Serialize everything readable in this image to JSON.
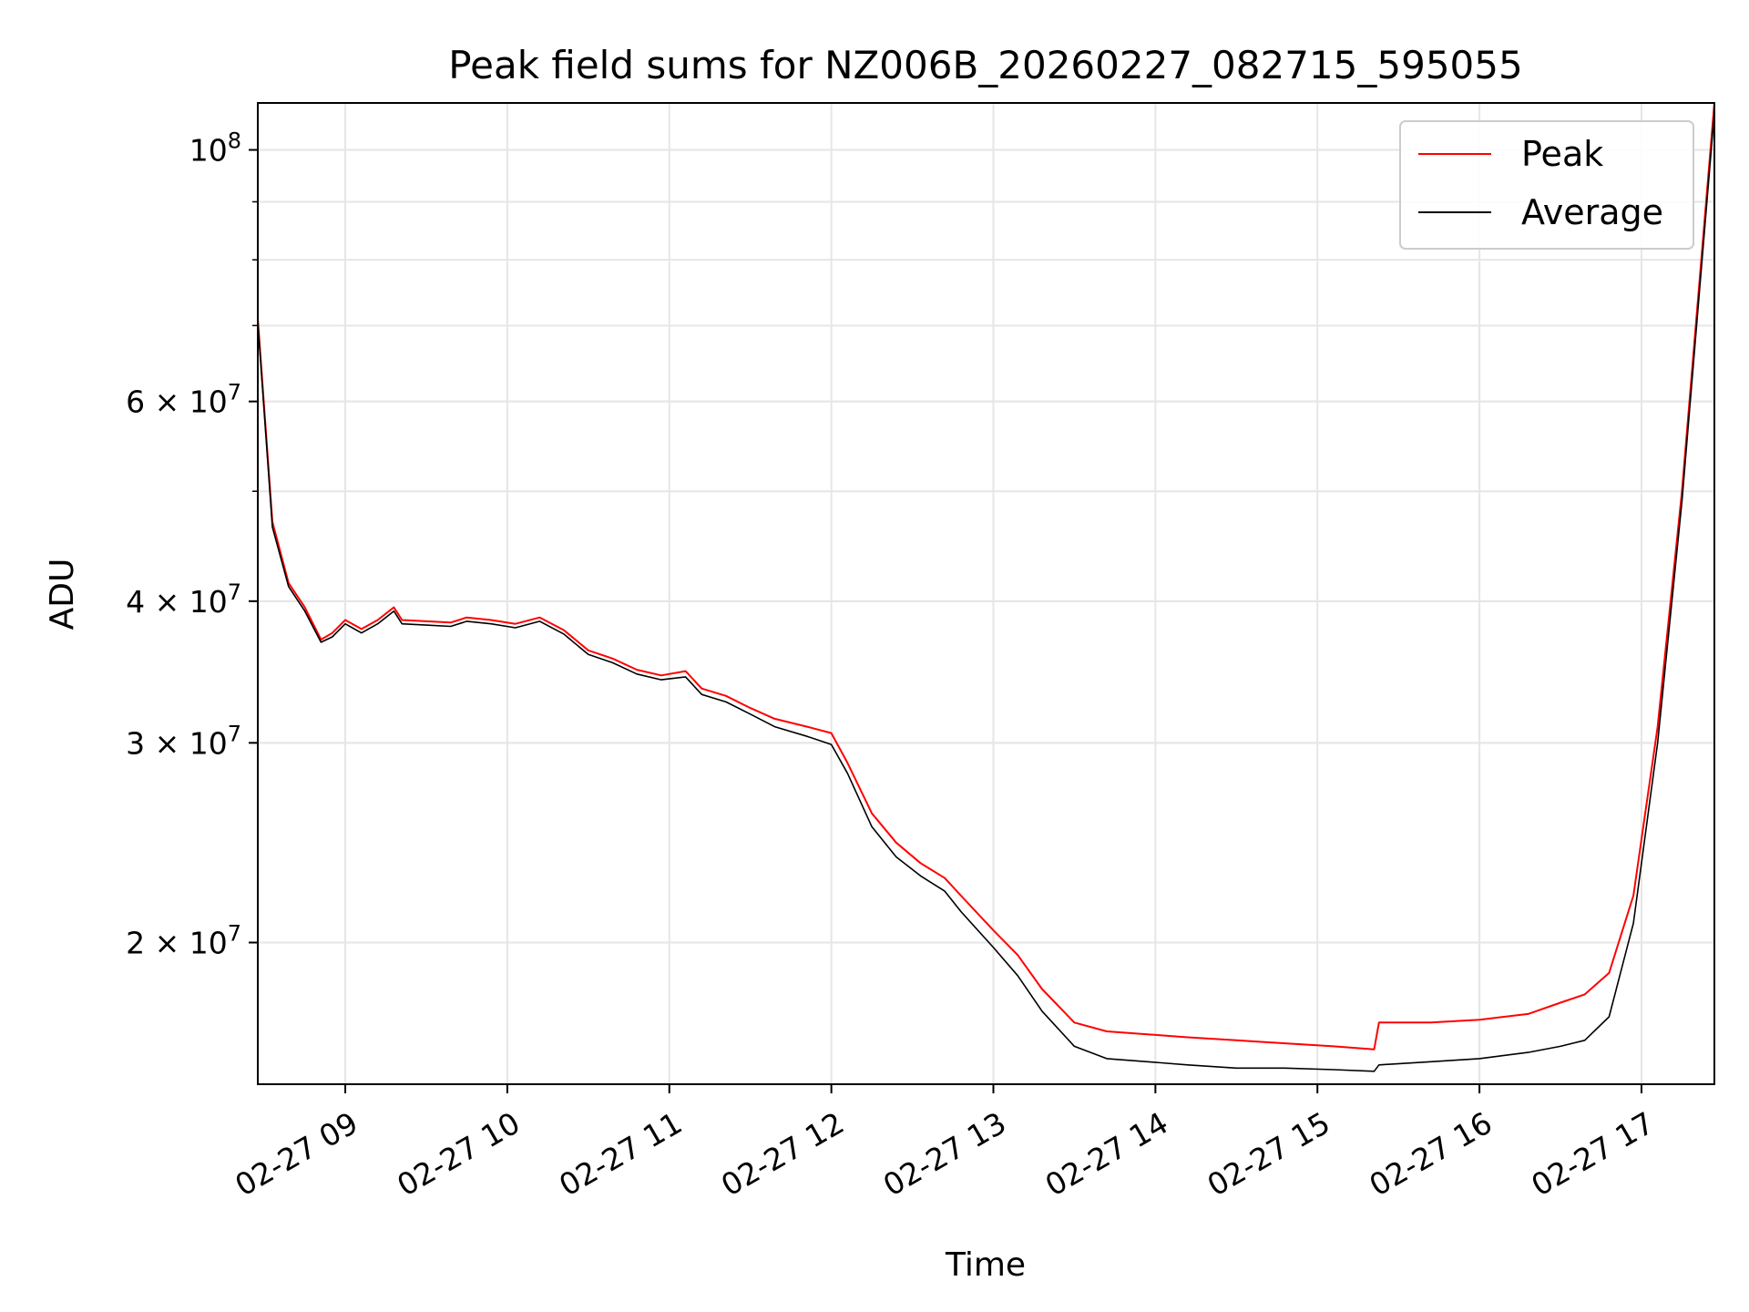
{
  "chart_data": {
    "type": "line",
    "title": "Peak field sums for NZ006B_20260227_082715_595055",
    "xlabel": "Time",
    "ylabel": "ADU",
    "yscale": "log",
    "ylim": [
      15000000,
      110000000
    ],
    "xlim_hours": [
      8.46,
      17.45
    ],
    "grid": true,
    "legend_position": "top-right",
    "x_ticks": [
      {
        "hour": 9,
        "label": "02-27 09"
      },
      {
        "hour": 10,
        "label": "02-27 10"
      },
      {
        "hour": 11,
        "label": "02-27 11"
      },
      {
        "hour": 12,
        "label": "02-27 12"
      },
      {
        "hour": 13,
        "label": "02-27 13"
      },
      {
        "hour": 14,
        "label": "02-27 14"
      },
      {
        "hour": 15,
        "label": "02-27 15"
      },
      {
        "hour": 16,
        "label": "02-27 16"
      },
      {
        "hour": 17,
        "label": "02-27 17"
      }
    ],
    "y_ticks": [
      {
        "value": 20000000,
        "mantissa": "2",
        "exponent": "7"
      },
      {
        "value": 30000000,
        "mantissa": "3",
        "exponent": "7"
      },
      {
        "value": 40000000,
        "mantissa": "4",
        "exponent": "7"
      },
      {
        "value": 60000000,
        "mantissa": "6",
        "exponent": "7"
      },
      {
        "value": 100000000,
        "mantissa": "",
        "exponent": "8"
      }
    ],
    "series": [
      {
        "name": "Peak",
        "color": "#ff0000",
        "x_hours": [
          8.46,
          8.55,
          8.65,
          8.75,
          8.85,
          8.92,
          9.0,
          9.1,
          9.2,
          9.3,
          9.35,
          9.5,
          9.65,
          9.75,
          9.9,
          10.05,
          10.2,
          10.35,
          10.5,
          10.65,
          10.8,
          10.95,
          11.1,
          11.2,
          11.35,
          11.5,
          11.65,
          11.85,
          12.0,
          12.1,
          12.25,
          12.4,
          12.55,
          12.7,
          12.8,
          13.0,
          13.15,
          13.3,
          13.5,
          13.7,
          13.95,
          14.2,
          14.5,
          14.8,
          15.1,
          15.35,
          15.38,
          15.7,
          16.0,
          16.3,
          16.5,
          16.65,
          16.8,
          16.95,
          17.1,
          17.25,
          17.45
        ],
        "values": [
          71000000,
          47000000,
          41500000,
          39500000,
          37000000,
          37500000,
          38500000,
          37800000,
          38500000,
          39500000,
          38500000,
          38400000,
          38300000,
          38700000,
          38500000,
          38200000,
          38700000,
          37700000,
          36200000,
          35600000,
          34800000,
          34400000,
          34700000,
          33500000,
          33000000,
          32200000,
          31500000,
          31000000,
          30600000,
          28800000,
          26000000,
          24500000,
          23500000,
          22800000,
          22000000,
          20500000,
          19500000,
          18200000,
          17000000,
          16700000,
          16600000,
          16500000,
          16400000,
          16300000,
          16200000,
          16100000,
          17000000,
          17000000,
          17100000,
          17300000,
          17700000,
          18000000,
          18800000,
          22000000,
          31000000,
          50000000,
          110000000
        ]
      },
      {
        "name": "Average",
        "color": "#000000",
        "x_hours": [
          8.46,
          8.55,
          8.65,
          8.75,
          8.85,
          8.92,
          9.0,
          9.1,
          9.2,
          9.3,
          9.35,
          9.5,
          9.65,
          9.75,
          9.9,
          10.05,
          10.2,
          10.35,
          10.5,
          10.65,
          10.8,
          10.95,
          11.1,
          11.2,
          11.35,
          11.5,
          11.65,
          11.85,
          12.0,
          12.1,
          12.25,
          12.4,
          12.55,
          12.7,
          12.8,
          13.0,
          13.15,
          13.3,
          13.5,
          13.7,
          13.95,
          14.2,
          14.5,
          14.8,
          15.1,
          15.35,
          15.38,
          15.7,
          16.0,
          16.3,
          16.5,
          16.65,
          16.8,
          16.95,
          17.1,
          17.25,
          17.45
        ],
        "values": [
          70500000,
          46500000,
          41200000,
          39200000,
          36800000,
          37200000,
          38200000,
          37500000,
          38200000,
          39200000,
          38200000,
          38100000,
          38000000,
          38400000,
          38200000,
          37900000,
          38400000,
          37400000,
          35900000,
          35300000,
          34500000,
          34100000,
          34300000,
          33100000,
          32600000,
          31800000,
          31000000,
          30400000,
          29900000,
          28200000,
          25300000,
          23800000,
          22900000,
          22200000,
          21300000,
          19800000,
          18700000,
          17400000,
          16200000,
          15800000,
          15700000,
          15600000,
          15500000,
          15500000,
          15450000,
          15400000,
          15600000,
          15700000,
          15800000,
          16000000,
          16200000,
          16400000,
          17200000,
          20800000,
          30000000,
          49000000,
          108000000
        ]
      }
    ]
  }
}
